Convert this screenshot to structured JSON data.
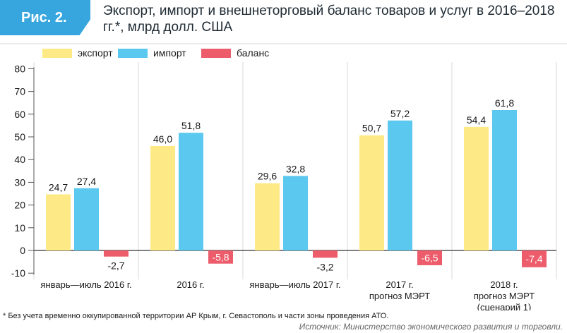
{
  "figure": {
    "label": "Рис. 2.",
    "title": "Экспорт, импорт и внешнеторговый баланс товаров и услуг в 2016–2018 гг.*, млрд долл. США",
    "footnote": "* Без учета временно оккупированной территории АР Крым, г. Севастополь и части зоны проведения АТО.",
    "source": "Источник: Министерство экономического развития и торговли."
  },
  "colors": {
    "export": "#fdea86",
    "import": "#5bc8ef",
    "balance": "#ec5c6b",
    "accent": "#38a6de",
    "grid": "#d9d9d9"
  },
  "chart_data": {
    "type": "bar",
    "ylim": [
      -10,
      80
    ],
    "yticks": [
      -10,
      0,
      10,
      20,
      30,
      40,
      50,
      60,
      70,
      80
    ],
    "legend_position": "top-left",
    "categories": [
      [
        "январь—июль 2016 г."
      ],
      [
        "2016 г."
      ],
      [
        "январь—июль 2017 г."
      ],
      [
        "2017 г.",
        "прогноз МЭРТ"
      ],
      [
        "2018 г.",
        "прогноз МЭРТ",
        "(сценарий 1)"
      ]
    ],
    "series": [
      {
        "key": "export",
        "name": "экспорт",
        "values": [
          24.7,
          46.0,
          29.6,
          50.7,
          54.4
        ],
        "labels": [
          "24,7",
          "46,0",
          "29,6",
          "50,7",
          "54,4"
        ]
      },
      {
        "key": "import",
        "name": "импорт",
        "values": [
          27.4,
          51.8,
          32.8,
          57.2,
          61.8
        ],
        "labels": [
          "27,4",
          "51,8",
          "32,8",
          "57,2",
          "61,8"
        ]
      },
      {
        "key": "balance",
        "name": "баланс",
        "values": [
          -2.7,
          -5.8,
          -3.2,
          -6.5,
          -7.4
        ],
        "labels": [
          "-2,7",
          "-5,8",
          "-3,2",
          "-6,5",
          "-7,4"
        ]
      }
    ]
  }
}
